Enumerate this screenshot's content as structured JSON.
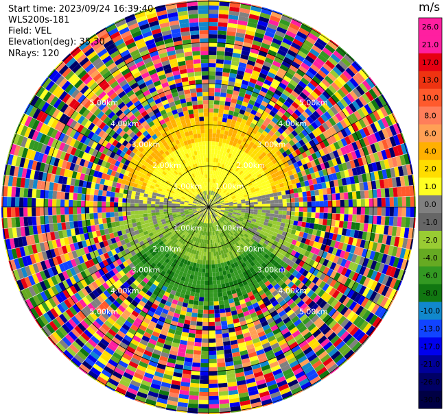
{
  "info": {
    "start_time": "Start time: 2023/09/24 16:39:40",
    "site": "WLS200s-181",
    "field": "Field: VEL",
    "elevation": "Elevation(deg): 35.30",
    "nrays": "NRays: 120"
  },
  "ring_labels": {
    "km1": "1.00km",
    "km2": "2.00km",
    "km3": "3.00km",
    "km4": "4.00km",
    "km5": "5.00km"
  },
  "colorbar": {
    "unit": "m/s",
    "ticks": [
      "26.0",
      "21.0",
      "17.0",
      "13.0",
      "10.0",
      "8.0",
      "6.0",
      "4.0",
      "2.0",
      "1.0",
      "0.0",
      "-1.0",
      "-2.0",
      "-4.0",
      "-6.0",
      "-8.0",
      "-10.0",
      "-13.0",
      "-17.0",
      "-21.0",
      "-26.0",
      "-30.0"
    ],
    "colors": [
      "#ff1fa0",
      "#ff1fa0",
      "#e60012",
      "#ee3311",
      "#ff5a2c",
      "#ff7e5a",
      "#ffa055",
      "#ffb000",
      "#ffdd00",
      "#ffff22",
      "#808080",
      "#666666",
      "#99cc33",
      "#66aa22",
      "#339922",
      "#117711",
      "#1188cc",
      "#1144ff",
      "#0000ee",
      "#000099",
      "#000066",
      "#000044"
    ]
  }
}
